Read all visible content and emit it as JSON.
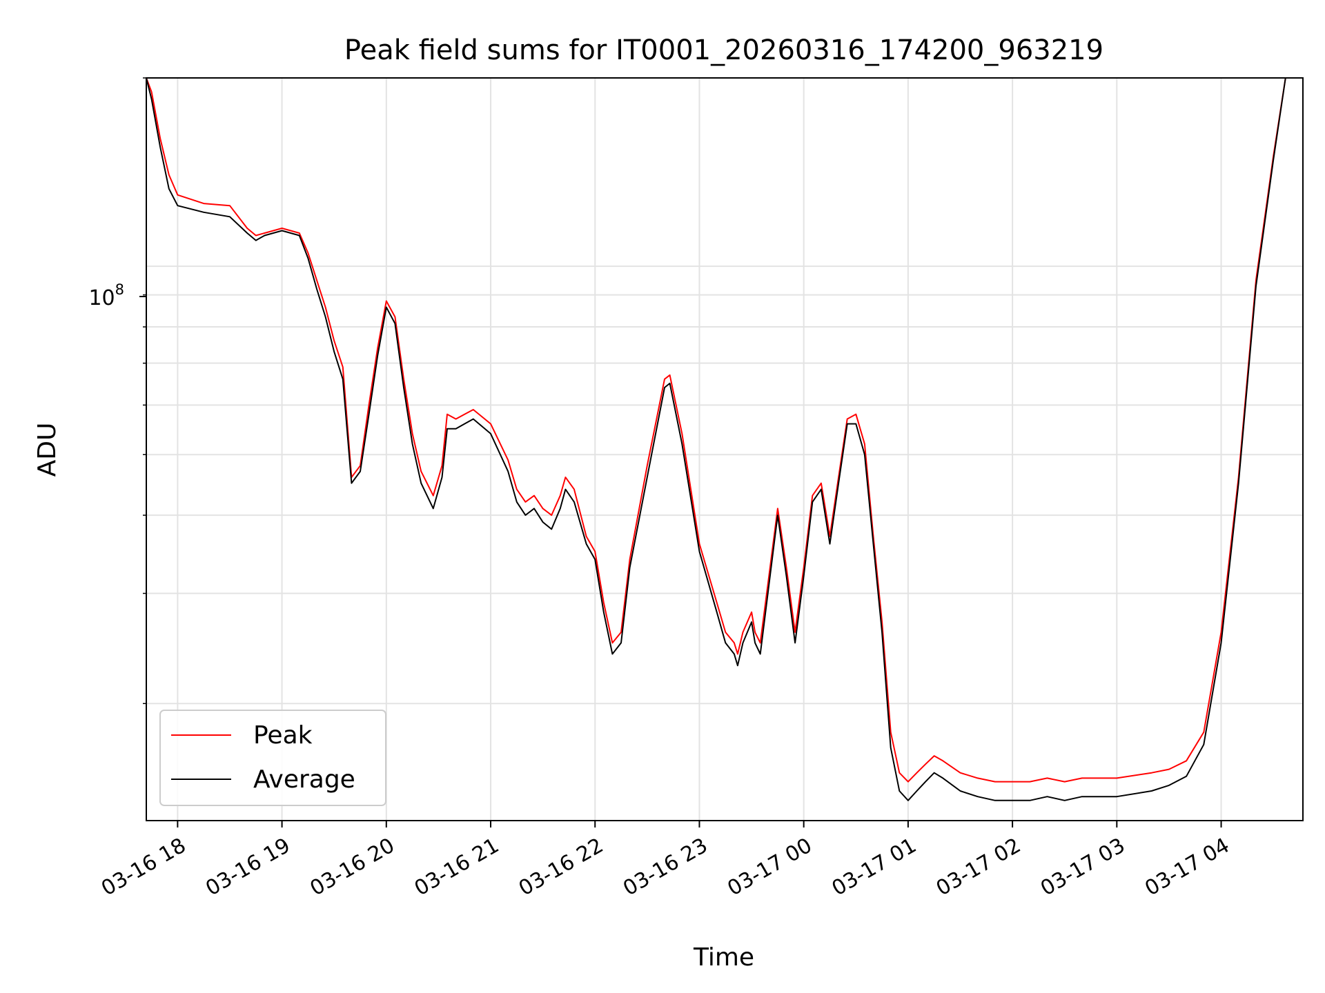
{
  "chart_data": {
    "type": "line",
    "title": "Peak field sums for IT0001_20260316_174200_963219",
    "xlabel": "Time",
    "ylabel": "ADU",
    "x_tick_labels": [
      "03-16 18",
      "03-16 19",
      "03-16 20",
      "03-16 21",
      "03-16 22",
      "03-16 23",
      "03-17 00",
      "03-17 01",
      "03-17 02",
      "03-17 03",
      "03-17 04"
    ],
    "y_tick_label": {
      "base": "10",
      "exponent": "8"
    },
    "y_scale": "log",
    "grid": true,
    "legend_position": "lower-left",
    "xlim": [
      "2026-03-16 17:42",
      "2026-03-17 04:47"
    ],
    "ylim": [
      13000000.0,
      200000000.0
    ],
    "series": [
      {
        "name": "Peak",
        "color": "#ff0000",
        "x": [
          "2026-03-16 17:42",
          "2026-03-16 17:45",
          "2026-03-16 17:50",
          "2026-03-16 17:55",
          "2026-03-16 18:00",
          "2026-03-16 18:15",
          "2026-03-16 18:30",
          "2026-03-16 18:40",
          "2026-03-16 18:45",
          "2026-03-16 18:50",
          "2026-03-16 19:00",
          "2026-03-16 19:10",
          "2026-03-16 19:15",
          "2026-03-16 19:20",
          "2026-03-16 19:25",
          "2026-03-16 19:30",
          "2026-03-16 19:35",
          "2026-03-16 19:40",
          "2026-03-16 19:45",
          "2026-03-16 19:50",
          "2026-03-16 19:55",
          "2026-03-16 20:00",
          "2026-03-16 20:05",
          "2026-03-16 20:10",
          "2026-03-16 20:15",
          "2026-03-16 20:20",
          "2026-03-16 20:27",
          "2026-03-16 20:32",
          "2026-03-16 20:35",
          "2026-03-16 20:40",
          "2026-03-16 20:45",
          "2026-03-16 20:50",
          "2026-03-16 21:00",
          "2026-03-16 21:10",
          "2026-03-16 21:15",
          "2026-03-16 21:20",
          "2026-03-16 21:25",
          "2026-03-16 21:30",
          "2026-03-16 21:35",
          "2026-03-16 21:40",
          "2026-03-16 21:43",
          "2026-03-16 21:48",
          "2026-03-16 21:55",
          "2026-03-16 22:00",
          "2026-03-16 22:05",
          "2026-03-16 22:10",
          "2026-03-16 22:15",
          "2026-03-16 22:20",
          "2026-03-16 22:30",
          "2026-03-16 22:40",
          "2026-03-16 22:43",
          "2026-03-16 22:50",
          "2026-03-16 23:00",
          "2026-03-16 23:10",
          "2026-03-16 23:15",
          "2026-03-16 23:20",
          "2026-03-16 23:22",
          "2026-03-16 23:25",
          "2026-03-16 23:30",
          "2026-03-16 23:32",
          "2026-03-16 23:35",
          "2026-03-16 23:40",
          "2026-03-16 23:45",
          "2026-03-16 23:50",
          "2026-03-16 23:55",
          "2026-03-17 00:00",
          "2026-03-17 00:05",
          "2026-03-17 00:10",
          "2026-03-17 00:15",
          "2026-03-17 00:20",
          "2026-03-17 00:25",
          "2026-03-17 00:30",
          "2026-03-17 00:35",
          "2026-03-17 00:40",
          "2026-03-17 00:45",
          "2026-03-17 00:50",
          "2026-03-17 00:55",
          "2026-03-17 01:00",
          "2026-03-17 01:05",
          "2026-03-17 01:10",
          "2026-03-17 01:15",
          "2026-03-17 01:20",
          "2026-03-17 01:30",
          "2026-03-17 01:40",
          "2026-03-17 01:50",
          "2026-03-17 02:00",
          "2026-03-17 02:10",
          "2026-03-17 02:20",
          "2026-03-17 02:30",
          "2026-03-17 02:40",
          "2026-03-17 03:00",
          "2026-03-17 03:20",
          "2026-03-17 03:30",
          "2026-03-17 03:40",
          "2026-03-17 03:50",
          "2026-03-17 04:00",
          "2026-03-17 04:10",
          "2026-03-17 04:20",
          "2026-03-17 04:30",
          "2026-03-17 04:37"
        ],
        "y": [
          200000000.0,
          190000000.0,
          160000000.0,
          140000000.0,
          130000000.0,
          126000000.0,
          125000000.0,
          115000000.0,
          112000000.0,
          113000000.0,
          115000000.0,
          113000000.0,
          105000000.0,
          95000000.0,
          86000000.0,
          76000000.0,
          69000000.0,
          46000000.0,
          48000000.0,
          60000000.0,
          74000000.0,
          88000000.0,
          83000000.0,
          66000000.0,
          54000000.0,
          47000000.0,
          43000000.0,
          48000000.0,
          58000000.0,
          57000000.0,
          58000000.0,
          59000000.0,
          56000000.0,
          49000000.0,
          44000000.0,
          42000000.0,
          43000000.0,
          41000000.0,
          40000000.0,
          43000000.0,
          46000000.0,
          44000000.0,
          37000000.0,
          35000000.0,
          29000000.0,
          25000000.0,
          26000000.0,
          34000000.0,
          48000000.0,
          66000000.0,
          67000000.0,
          54000000.0,
          36000000.0,
          29000000.0,
          26000000.0,
          25000000.0,
          24000000.0,
          26000000.0,
          28000000.0,
          26000000.0,
          25000000.0,
          32000000.0,
          41000000.0,
          33000000.0,
          26000000.0,
          33000000.0,
          43000000.0,
          45000000.0,
          37000000.0,
          46000000.0,
          57000000.0,
          58000000.0,
          52000000.0,
          37000000.0,
          27000000.0,
          18000000.0,
          15500000.0,
          15000000.0,
          15500000.0,
          16000000.0,
          16500000.0,
          16200000.0,
          15500000.0,
          15200000.0,
          15000000.0,
          15000000.0,
          15000000.0,
          15200000.0,
          15000000.0,
          15200000.0,
          15200000.0,
          15500000.0,
          15700000.0,
          16200000.0,
          18000000.0,
          26000000.0,
          46000000.0,
          95000000.0,
          150000000.0,
          200000000.0
        ]
      },
      {
        "name": "Average",
        "color": "#000000",
        "x": [
          "2026-03-16 17:42",
          "2026-03-16 17:45",
          "2026-03-16 17:50",
          "2026-03-16 17:55",
          "2026-03-16 18:00",
          "2026-03-16 18:15",
          "2026-03-16 18:30",
          "2026-03-16 18:40",
          "2026-03-16 18:45",
          "2026-03-16 18:50",
          "2026-03-16 19:00",
          "2026-03-16 19:10",
          "2026-03-16 19:15",
          "2026-03-16 19:20",
          "2026-03-16 19:25",
          "2026-03-16 19:30",
          "2026-03-16 19:35",
          "2026-03-16 19:40",
          "2026-03-16 19:45",
          "2026-03-16 19:50",
          "2026-03-16 19:55",
          "2026-03-16 20:00",
          "2026-03-16 20:05",
          "2026-03-16 20:10",
          "2026-03-16 20:15",
          "2026-03-16 20:20",
          "2026-03-16 20:27",
          "2026-03-16 20:32",
          "2026-03-16 20:35",
          "2026-03-16 20:40",
          "2026-03-16 20:45",
          "2026-03-16 20:50",
          "2026-03-16 21:00",
          "2026-03-16 21:10",
          "2026-03-16 21:15",
          "2026-03-16 21:20",
          "2026-03-16 21:25",
          "2026-03-16 21:30",
          "2026-03-16 21:35",
          "2026-03-16 21:40",
          "2026-03-16 21:43",
          "2026-03-16 21:48",
          "2026-03-16 21:55",
          "2026-03-16 22:00",
          "2026-03-16 22:05",
          "2026-03-16 22:10",
          "2026-03-16 22:15",
          "2026-03-16 22:20",
          "2026-03-16 22:30",
          "2026-03-16 22:40",
          "2026-03-16 22:43",
          "2026-03-16 22:50",
          "2026-03-16 23:00",
          "2026-03-16 23:10",
          "2026-03-16 23:15",
          "2026-03-16 23:20",
          "2026-03-16 23:22",
          "2026-03-16 23:25",
          "2026-03-16 23:30",
          "2026-03-16 23:32",
          "2026-03-16 23:35",
          "2026-03-16 23:40",
          "2026-03-16 23:45",
          "2026-03-16 23:50",
          "2026-03-16 23:55",
          "2026-03-17 00:00",
          "2026-03-17 00:05",
          "2026-03-17 00:10",
          "2026-03-17 00:15",
          "2026-03-17 00:20",
          "2026-03-17 00:25",
          "2026-03-17 00:30",
          "2026-03-17 00:35",
          "2026-03-17 00:40",
          "2026-03-17 00:45",
          "2026-03-17 00:50",
          "2026-03-17 00:55",
          "2026-03-17 01:00",
          "2026-03-17 01:05",
          "2026-03-17 01:10",
          "2026-03-17 01:15",
          "2026-03-17 01:20",
          "2026-03-17 01:30",
          "2026-03-17 01:40",
          "2026-03-17 01:50",
          "2026-03-17 02:00",
          "2026-03-17 02:10",
          "2026-03-17 02:20",
          "2026-03-17 02:30",
          "2026-03-17 02:40",
          "2026-03-17 03:00",
          "2026-03-17 03:20",
          "2026-03-17 03:30",
          "2026-03-17 03:40",
          "2026-03-17 03:50",
          "2026-03-17 04:00",
          "2026-03-17 04:10",
          "2026-03-17 04:20",
          "2026-03-17 04:30",
          "2026-03-17 04:37"
        ],
        "y": [
          200000000.0,
          185000000.0,
          155000000.0,
          133000000.0,
          125000000.0,
          122000000.0,
          120000000.0,
          113000000.0,
          110000000.0,
          112000000.0,
          114000000.0,
          112000000.0,
          103000000.0,
          92000000.0,
          83000000.0,
          73000000.0,
          66000000.0,
          45000000.0,
          47000000.0,
          58000000.0,
          72000000.0,
          86000000.0,
          81000000.0,
          64000000.0,
          52000000.0,
          45000000.0,
          41000000.0,
          46000000.0,
          55000000.0,
          55000000.0,
          56000000.0,
          57000000.0,
          54000000.0,
          47000000.0,
          42000000.0,
          40000000.0,
          41000000.0,
          39000000.0,
          38000000.0,
          41000000.0,
          44000000.0,
          42000000.0,
          36000000.0,
          34000000.0,
          28000000.0,
          24000000.0,
          25000000.0,
          33000000.0,
          46000000.0,
          64000000.0,
          65000000.0,
          52000000.0,
          35000000.0,
          28000000.0,
          25000000.0,
          24000000.0,
          23000000.0,
          25000000.0,
          27000000.0,
          25000000.0,
          24000000.0,
          31000000.0,
          40000000.0,
          32000000.0,
          25000000.0,
          32000000.0,
          42000000.0,
          44000000.0,
          36000000.0,
          45000000.0,
          56000000.0,
          56000000.0,
          50000000.0,
          36000000.0,
          26000000.0,
          17000000.0,
          14500000.0,
          14000000.0,
          14500000.0,
          15000000.0,
          15500000.0,
          15200000.0,
          14500000.0,
          14200000.0,
          14000000.0,
          14000000.0,
          14000000.0,
          14200000.0,
          14000000.0,
          14200000.0,
          14200000.0,
          14500000.0,
          14800000.0,
          15300000.0,
          17200000.0,
          25000000.0,
          45000000.0,
          93000000.0,
          148000000.0,
          200000000.0
        ]
      }
    ]
  }
}
